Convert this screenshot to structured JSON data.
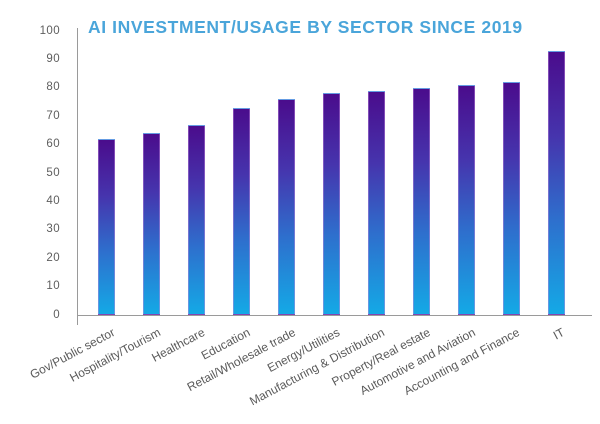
{
  "chart_data": {
    "type": "bar",
    "title": "AI INVESTMENT/USAGE BY SECTOR SINCE 2019",
    "categories": [
      "Gov/Public sector",
      "Hospitality/Tourism",
      "Healthcare",
      "Education",
      "Retail/Wholesale trade",
      "Energy/Utilities",
      "Manufacturing & Distribution",
      "Property/Real estate",
      "Automotive and Aviation",
      "Accounting and Finance",
      "IT"
    ],
    "values": [
      62,
      64,
      67,
      73,
      76,
      78,
      79,
      80,
      81,
      82,
      93
    ],
    "xlabel": "",
    "ylabel": "",
    "ylim": [
      0,
      100
    ],
    "yticks": [
      0,
      10,
      20,
      30,
      40,
      50,
      60,
      70,
      80,
      90,
      100
    ],
    "grid": false,
    "legend": "none",
    "colors": {
      "title": "#4aa5da",
      "axis_line": "#9a9a9a",
      "tick_text": "#5e5e5e",
      "category_text": "#5a5a5a",
      "bar_gradient_top": "#4a0c8c",
      "bar_gradient_upper_mid": "#4634ad",
      "bar_gradient_lower_mid": "#2e6fcd",
      "bar_gradient_bottom": "#14a9e6"
    }
  }
}
